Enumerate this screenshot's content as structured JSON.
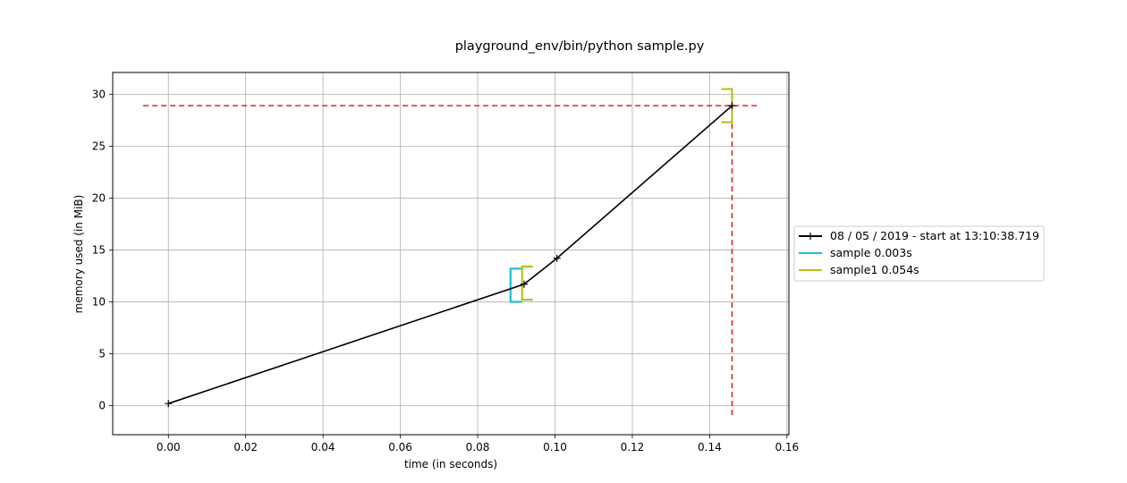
{
  "chart_data": {
    "type": "line",
    "title": "playground_env/bin/python sample.py",
    "xlabel": "time (in seconds)",
    "ylabel": "memory used (in MiB)",
    "xlim": [
      -0.0144,
      0.1605
    ],
    "ylim": [
      -2.8,
      32.1
    ],
    "xticks": [
      "0.00",
      "0.02",
      "0.04",
      "0.06",
      "0.08",
      "0.10",
      "0.12",
      "0.14",
      "0.16"
    ],
    "yticks": [
      "0",
      "5",
      "10",
      "15",
      "20",
      "25",
      "30"
    ],
    "grid": true,
    "legend_position": "outside-right",
    "series": [
      {
        "name": "08 / 05 / 2019 - start at 13:10:38.719",
        "color": "#000000",
        "marker": "plus",
        "x": [
          0.0,
          0.092,
          0.1005,
          0.1458
        ],
        "y": [
          0.2,
          11.7,
          14.2,
          28.9
        ]
      }
    ],
    "brackets": [
      {
        "name": "sample 0.003s",
        "color": "#17becf",
        "x_start": 0.0885,
        "x_end": 0.0915,
        "y_low": 10.0,
        "y_high": 13.2
      },
      {
        "name": "sample1 0.054s",
        "color": "#bcbd22",
        "x_start": 0.0915,
        "x_end": 0.1458,
        "y_low": 10.2,
        "y_high": 13.4,
        "y_low2": 27.3,
        "y_high2": 30.5
      }
    ],
    "max_lines": {
      "color": "#d62728",
      "y_value": 28.9,
      "x_value": 0.1458
    }
  }
}
